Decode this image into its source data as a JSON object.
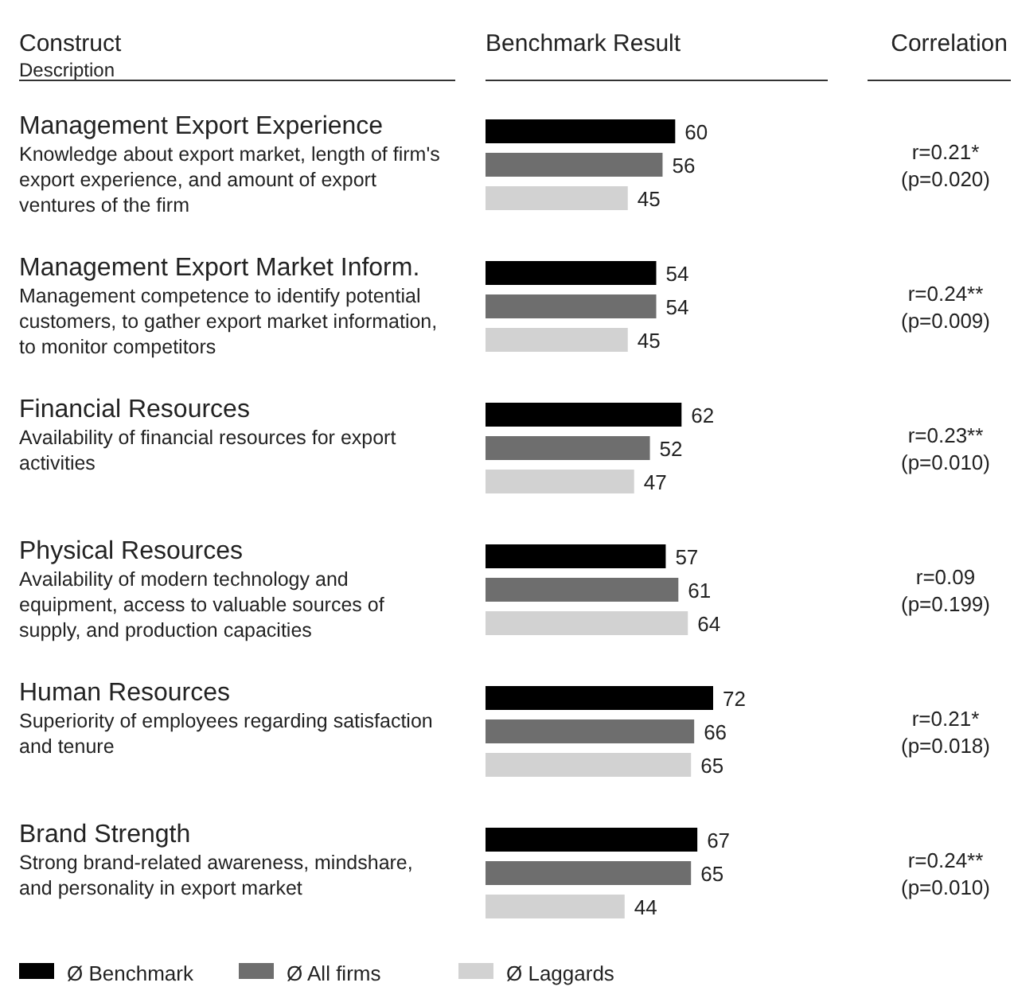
{
  "chart_data": {
    "type": "bar",
    "orientation": "horizontal",
    "data_labels": true,
    "legend": "bottom",
    "categories": [
      "Management Export Experience",
      "Management Export Market Inform.",
      "Financial Resources",
      "Physical Resources",
      "Human Resources",
      "Brand Strength"
    ],
    "series": [
      {
        "name": "Ø Benchmark",
        "color": "#000000",
        "values": [
          60,
          54,
          62,
          57,
          72,
          67
        ]
      },
      {
        "name": "Ø All firms",
        "color": "#6e6e6e",
        "values": [
          56,
          54,
          52,
          61,
          66,
          65
        ]
      },
      {
        "name": "Ø Laggards",
        "color": "#d2d2d2",
        "values": [
          45,
          45,
          47,
          64,
          65,
          44
        ]
      }
    ],
    "annotations": [
      "Construct",
      "Description",
      "Benchmark Result",
      "Correlation",
      "Knowledge about export market, length of firm's export experience, and amount of export ventures of the firm",
      "r=0.21* (p=0.020)",
      "Management competence to identify potential customers, to gather export market information, to monitor competitors",
      "r=0.24** (p=0.009)",
      "Availability of financial resources for export activities",
      "r=0.23** (p=0.010)",
      "Availability of modern technology and equipment, access to valuable sources of supply, and production capacities",
      "r=0.09 (p=0.199)",
      "Superiority of employees regarding satisfaction and tenure",
      "r=0.21* (p=0.018)",
      "Strong brand-related awareness, mindshare, and personality in export market",
      "r=0.24** (p=0.010)"
    ]
  }
}
